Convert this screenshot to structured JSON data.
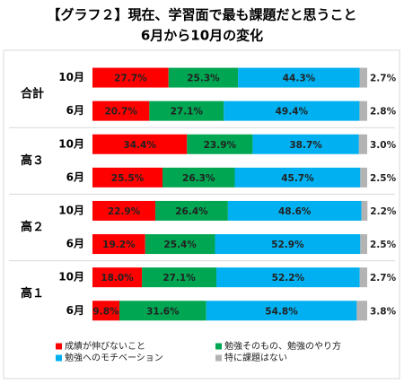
{
  "chart_data": {
    "type": "stacked-bar-horizontal",
    "title": "【グラフ２】現在、学習面で最も課題だと思うこと",
    "subtitle": "6月から10月の変化",
    "groups": [
      "合計",
      "高３",
      "高２",
      "高１"
    ],
    "categories": [
      "10月",
      "6月",
      "10月",
      "6月",
      "10月",
      "6月",
      "10月",
      "6月"
    ],
    "xlim": [
      0,
      100
    ],
    "series": [
      {
        "name": "成績が伸びないこと",
        "color": "#ff0000",
        "values": [
          27.7,
          20.7,
          34.4,
          25.5,
          22.9,
          19.2,
          18.0,
          9.8
        ],
        "value_labels": [
          "27.7%",
          "20.7%",
          "34.4%",
          "25.5%",
          "22.9%",
          "19.2%",
          "18.0%",
          "9.8%"
        ]
      },
      {
        "name": "勉強そのもの、勉強のやり方",
        "color": "#00a651",
        "values": [
          25.3,
          27.1,
          23.9,
          26.3,
          26.4,
          25.4,
          27.1,
          31.6
        ],
        "value_labels": [
          "25.3%",
          "27.1%",
          "23.9%",
          "26.3%",
          "26.4%",
          "25.4%",
          "27.1%",
          "31.6%"
        ]
      },
      {
        "name": "勉強へのモチベーション",
        "color": "#00b0f0",
        "values": [
          44.3,
          49.4,
          38.7,
          45.7,
          48.6,
          52.9,
          52.2,
          54.8
        ],
        "value_labels": [
          "44.3%",
          "49.4%",
          "38.7%",
          "45.7%",
          "48.6%",
          "52.9%",
          "52.2%",
          "54.8%"
        ]
      },
      {
        "name": "特に課題はない",
        "color": "#b3b3b3",
        "values": [
          2.7,
          2.8,
          3.0,
          2.5,
          2.2,
          2.5,
          2.7,
          3.8
        ],
        "value_labels": [
          "2.7%",
          "2.8%",
          "3.0%",
          "2.5%",
          "2.2%",
          "2.5%",
          "2.7%",
          "3.8%"
        ]
      }
    ]
  }
}
